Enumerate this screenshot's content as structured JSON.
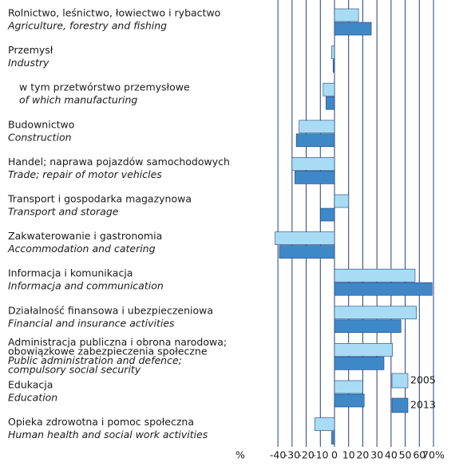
{
  "chart_data": {
    "type": "bar",
    "orientation": "horizontal",
    "categories": [
      [
        "Rolnictwo, leśnictwo, łowiectwo i rybactwo",
        "Agriculture, forestry and fishing"
      ],
      [
        "Przemysł",
        "Industry"
      ],
      [
        "w tym przetwórstwo przemysłowe",
        "of which manufacturing"
      ],
      [
        "Budownictwo",
        "Construction"
      ],
      [
        "Handel; naprawa pojazdów samochodowych",
        "Trade; repair of motor vehicles"
      ],
      [
        "Transport i gospodarka magazynowa",
        "Transport and storage"
      ],
      [
        "Zakwaterowanie i gastronomia",
        "Accommodation and catering"
      ],
      [
        "Informacja i komunikacja",
        "Informacja and communication"
      ],
      [
        "Działalność finansowa i ubezpieczeniowa",
        "Financial and insurance activities"
      ],
      [
        "Administracja publiczna i obrona narodowa;",
        "obowiązkowe zabezpieczenia społeczne",
        "Public administration and defence;",
        "compulsory social security"
      ],
      [
        "Edukacja",
        "Education"
      ],
      [
        "Opieka zdrowotna i pomoc społeczna",
        "Human health and social work activities"
      ]
    ],
    "series": [
      {
        "name": "2005",
        "color": "#a8dcf4",
        "values": [
          17,
          -2,
          -8,
          -25,
          -30,
          10,
          -42,
          57,
          58,
          41,
          20,
          -14
        ]
      },
      {
        "name": "2013",
        "color": "#3f88c8",
        "values": [
          26,
          -1,
          -6,
          -27,
          -28,
          -10,
          -39,
          69,
          47,
          35,
          21,
          -2
        ]
      }
    ],
    "x_label": "%",
    "xlim": [
      -45,
      70
    ],
    "xticks": [
      -40,
      -30,
      -20,
      -10,
      0,
      10,
      20,
      30,
      40,
      50,
      60,
      {
        "value": 70,
        "label": "70%"
      }
    ],
    "grid": true,
    "legend": "lower right"
  }
}
